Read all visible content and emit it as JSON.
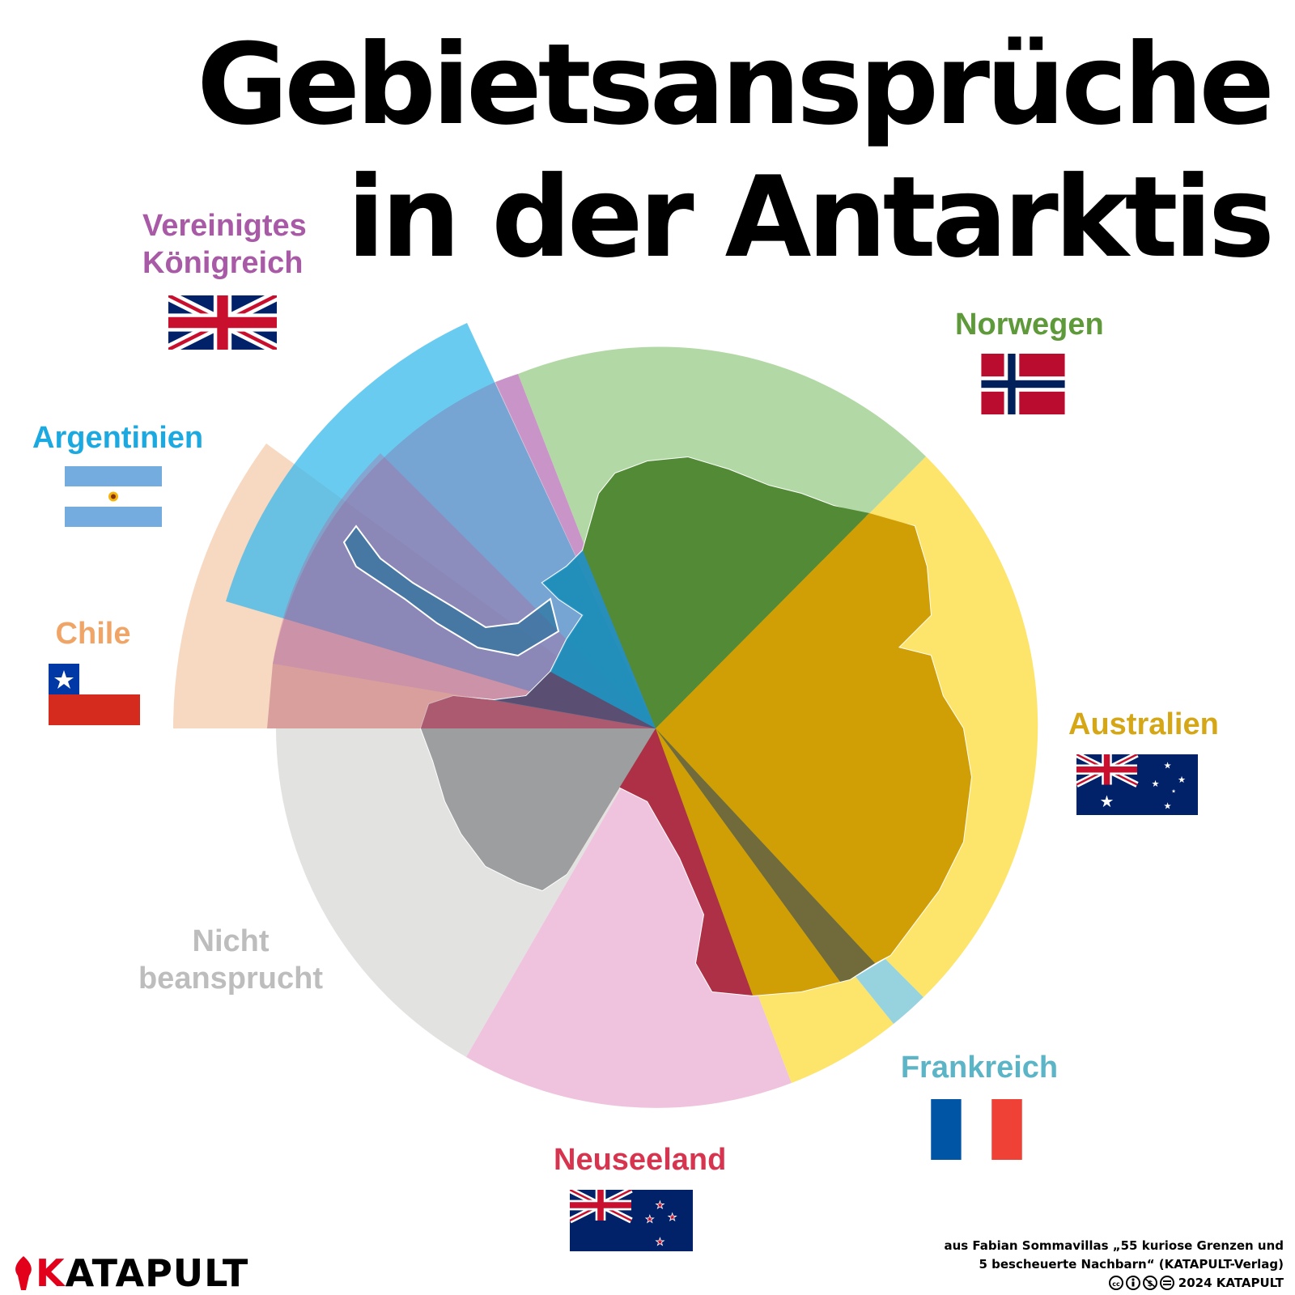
{
  "title": {
    "line1": "Gebietsansprüche",
    "line2": "in der Antarktis"
  },
  "claims": [
    {
      "id": "uk",
      "label_line1": "Vereinigtes",
      "label_line2": "Königreich",
      "color": "#a85aa6"
    },
    {
      "id": "ar",
      "label_line1": "Argentinien",
      "color": "#1ba9e1"
    },
    {
      "id": "cl",
      "label_line1": "Chile",
      "color": "#f0a567"
    },
    {
      "id": "no",
      "label_line1": "Norwegen",
      "color": "#5f9a3a"
    },
    {
      "id": "au",
      "label_line1": "Australien",
      "color": "#d5a716"
    },
    {
      "id": "fr",
      "label_line1": "Frankreich",
      "color": "#5bb5c7"
    },
    {
      "id": "nz",
      "label_line1": "Neuseeland",
      "color": "#d7354f"
    },
    {
      "id": "none",
      "label_line1": "Nicht",
      "label_line2": "beansprucht",
      "color": "#bdbdbd"
    }
  ],
  "credit": {
    "line1": "aus Fabian Sommavillas „55 kuriose Grenzen und",
    "line2": "5 bescheuerte Nachbarn“ (KATAPULT-Verlag)",
    "line3": "2024 KATAPULT"
  },
  "logo": {
    "first": "K",
    "rest": "ATAPULT"
  }
}
